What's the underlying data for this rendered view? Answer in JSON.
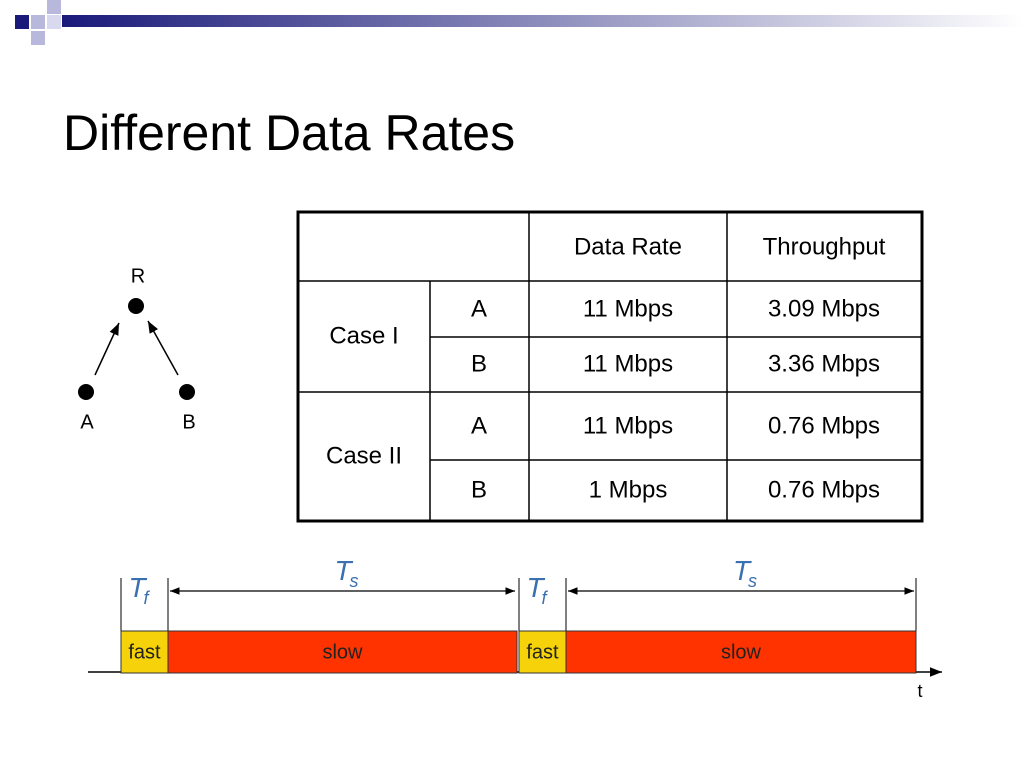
{
  "title": "Different Data Rates",
  "topology": {
    "nodes": [
      {
        "label": "R"
      },
      {
        "label": "A"
      },
      {
        "label": "B"
      }
    ]
  },
  "table": {
    "header": [
      "Data Rate",
      "Throughput"
    ],
    "groups": [
      {
        "label": "Case I",
        "rows": [
          [
            "A",
            "11 Mbps",
            "3.09 Mbps"
          ],
          [
            "B",
            "11 Mbps",
            "3.36 Mbps"
          ]
        ]
      },
      {
        "label": "Case II",
        "rows": [
          [
            "A",
            "11 Mbps",
            "0.76 Mbps"
          ],
          [
            "B",
            "1 Mbps",
            "0.76 Mbps"
          ]
        ]
      }
    ]
  },
  "timeline": {
    "intervals": [
      {
        "symbol": "T",
        "subscript": "f",
        "label": "fast"
      },
      {
        "symbol": "T",
        "subscript": "s",
        "label": "slow"
      },
      {
        "symbol": "T",
        "subscript": "f",
        "label": "fast"
      },
      {
        "symbol": "T",
        "subscript": "s",
        "label": "slow"
      }
    ],
    "axis_label": "t"
  }
}
